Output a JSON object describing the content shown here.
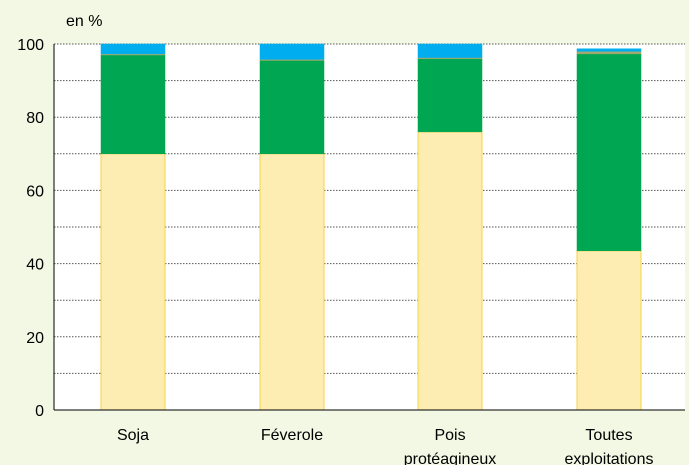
{
  "chart_data": {
    "type": "bar",
    "stacked": true,
    "unit_label": "en %",
    "categories": [
      [
        "Soja"
      ],
      [
        "Féverole"
      ],
      [
        "Pois",
        "protéagineux"
      ],
      [
        "Toutes",
        "exploitations"
      ]
    ],
    "series": [
      {
        "values": [
          70,
          70,
          76,
          43.5
        ],
        "color": "#fdedb3",
        "stroke": "#f5d24a"
      },
      {
        "values": [
          27,
          25.5,
          20,
          53.8
        ],
        "color": "#00a651",
        "stroke": "#00a651"
      },
      {
        "values": [
          0.3,
          0.3,
          0.3,
          0.7
        ],
        "color": "#a3a86d",
        "stroke": "#a3a86d"
      },
      {
        "values": [
          2.7,
          4.2,
          3.7,
          0.7
        ],
        "color": "#00aeef",
        "stroke": "#00aeef"
      }
    ],
    "yticks": [
      0,
      20,
      40,
      60,
      80,
      100
    ],
    "ylim": [
      0,
      100
    ],
    "grid": "dotted-horizontal",
    "xlabel": "",
    "ylabel": "",
    "title": ""
  }
}
